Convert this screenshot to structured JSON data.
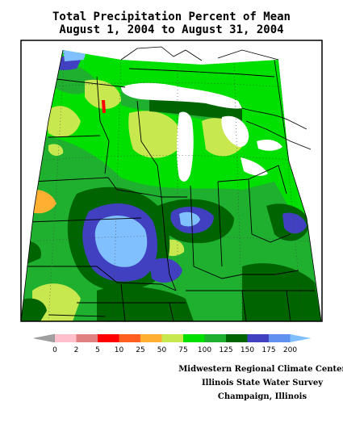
{
  "title": {
    "line1": "Total Precipitation Percent of Mean",
    "line2": "August 1, 2004 to August 31, 2004"
  },
  "legend": {
    "bins": [
      {
        "color": "#ffc0cb"
      },
      {
        "color": "#e08080"
      },
      {
        "color": "#ff0000"
      },
      {
        "color": "#ff6020"
      },
      {
        "color": "#ffb030"
      },
      {
        "color": "#c8e850"
      },
      {
        "color": "#00e000"
      },
      {
        "color": "#20b030"
      },
      {
        "color": "#006400"
      },
      {
        "color": "#4040c0"
      },
      {
        "color": "#6090f0"
      }
    ],
    "low_arrow_color": "#a0a0a0",
    "high_arrow_color": "#80c0ff",
    "labels": [
      "0",
      "2",
      "5",
      "10",
      "25",
      "50",
      "75",
      "100",
      "125",
      "150",
      "175",
      "200"
    ]
  },
  "credits": {
    "line1": "Midwestern Regional Climate Center",
    "line2": "Illinois State Water Survey",
    "line3": "Champaign, Illinois"
  },
  "colors": {
    "green_bright": "#00e000",
    "green_mid": "#20b030",
    "green_dark": "#006400",
    "yellow_green": "#c8e850",
    "orange": "#ffb030",
    "red": "#ff0000",
    "blue_dark": "#4040c0",
    "blue_light": "#80c0ff",
    "lake": "#ffffff"
  }
}
